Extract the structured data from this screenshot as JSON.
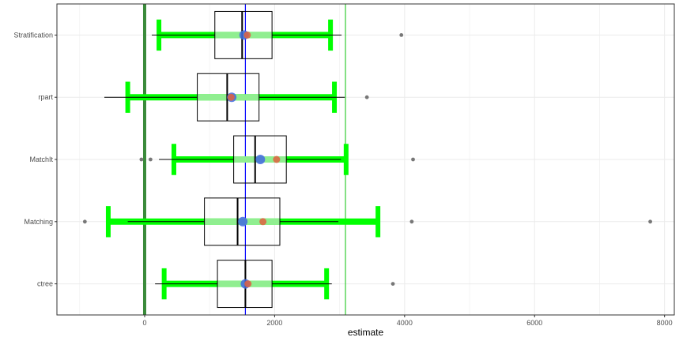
{
  "chart_data": {
    "type": "boxplot",
    "xlabel": "estimate",
    "ylabel": "",
    "xlim": [
      -1350,
      8150
    ],
    "x_ticks": [
      0,
      2000,
      4000,
      6000,
      8000
    ],
    "x_tick_labels": [
      "0",
      "2000",
      "4000",
      "6000",
      "8000"
    ],
    "categories": [
      "Stratification",
      "rpart",
      "MatchIt",
      "Matching",
      "ctree"
    ],
    "grid": true,
    "legend": "none",
    "reference_lines": [
      {
        "value": 0,
        "color": "#3a8a3a"
      },
      {
        "value": 1550,
        "color": "#0000ff"
      },
      {
        "value": 3090,
        "color": "#33cc33"
      }
    ],
    "rows": [
      {
        "label": "Stratification",
        "box": {
          "q1": 1080,
          "median": 1500,
          "q3": 1960,
          "whisker_low": 110,
          "whisker_high": 3030
        },
        "outliers": [
          3950
        ],
        "ci": {
          "low": 220,
          "high": 2860
        },
        "iqr_band": {
          "low": 1080,
          "high": 1960
        },
        "mean_blue": 1530,
        "mean_red": 1580
      },
      {
        "label": "rpart",
        "box": {
          "q1": 810,
          "median": 1270,
          "q3": 1760,
          "whisker_low": -620,
          "whisker_high": 3080
        },
        "outliers": [
          3420
        ],
        "ci": {
          "low": -260,
          "high": 2920
        },
        "iqr_band": {
          "low": 810,
          "high": 1760
        },
        "mean_blue": 1340,
        "mean_red": 1330
      },
      {
        "label": "MatchIt",
        "box": {
          "q1": 1370,
          "median": 1700,
          "q3": 2180,
          "whisker_low": 220,
          "whisker_high": 3020
        },
        "outliers": [
          -50,
          90,
          4130
        ],
        "ci": {
          "low": 450,
          "high": 3100
        },
        "iqr_band": {
          "low": 1370,
          "high": 2180
        },
        "mean_blue": 1780,
        "mean_red": 2030
      },
      {
        "label": "Matching",
        "box": {
          "q1": 920,
          "median": 1430,
          "q3": 2080,
          "whisker_low": -260,
          "whisker_high": 2980
        },
        "outliers": [
          -920,
          4110,
          7780
        ],
        "ci": {
          "low": -560,
          "high": 3590
        },
        "iqr_band": {
          "low": 920,
          "high": 2080
        },
        "mean_blue": 1510,
        "mean_red": 1820
      },
      {
        "label": "ctree",
        "box": {
          "q1": 1120,
          "median": 1550,
          "q3": 1960,
          "whisker_low": 160,
          "whisker_high": 2880
        },
        "outliers": [
          3820
        ],
        "ci": {
          "low": 300,
          "high": 2800
        },
        "iqr_band": {
          "low": 1120,
          "high": 1960
        },
        "mean_blue": 1550,
        "mean_red": 1590
      }
    ],
    "colors": {
      "ci_bar": "#00ff00",
      "iqr_band": "#90ee90",
      "mean_blue": "#4169e1",
      "mean_red": "#e06040",
      "box_stroke": "#000000",
      "outlier": "#777777",
      "grid": "#ebebeb",
      "panel_border": "#333333"
    }
  }
}
